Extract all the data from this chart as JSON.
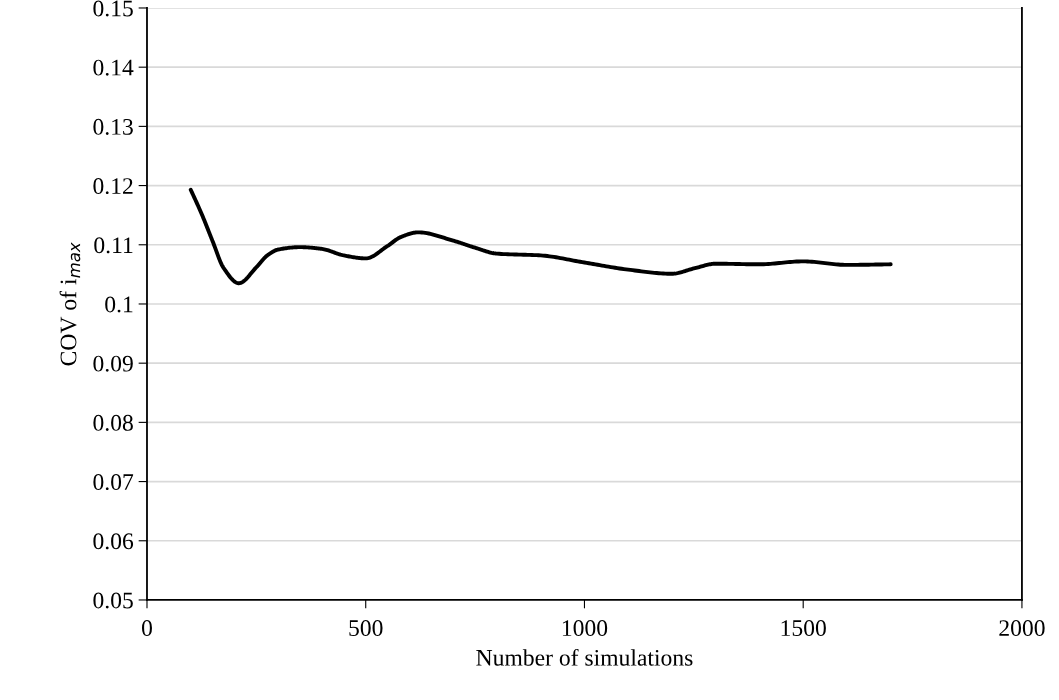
{
  "chart_data": {
    "type": "line",
    "xlabel": "Number of simulations",
    "ylabel": "COV of i$_{max}$",
    "x": [
      100,
      125,
      150,
      175,
      210,
      250,
      275,
      300,
      350,
      400,
      450,
      500,
      550,
      580,
      620,
      700,
      750,
      800,
      900,
      1000,
      1100,
      1200,
      1250,
      1300,
      1400,
      1500,
      1600,
      1700
    ],
    "series": [
      {
        "color": "#000000",
        "values": [
          0.1193,
          0.1152,
          0.1106,
          0.1061,
          0.1035,
          0.1062,
          0.1082,
          0.1092,
          0.1096,
          0.1093,
          0.1082,
          0.1077,
          0.1098,
          0.1113,
          0.1121,
          0.1107,
          0.1095,
          0.1085,
          0.1082,
          0.107,
          0.1058,
          0.1051,
          0.106,
          0.1068,
          0.1067,
          0.1072,
          0.1066,
          0.1067
        ]
      }
    ],
    "xlim": [
      0,
      2000
    ],
    "xticks": [
      0,
      500,
      1000,
      1500,
      2000
    ],
    "ylim": [
      0.05,
      0.15
    ],
    "yticks": [
      0.05,
      0.06,
      0.07,
      0.08,
      0.09,
      0.1,
      0.11,
      0.12,
      0.13,
      0.14,
      0.15
    ],
    "grid": "y",
    "marker": "none",
    "line_style": "solid"
  }
}
